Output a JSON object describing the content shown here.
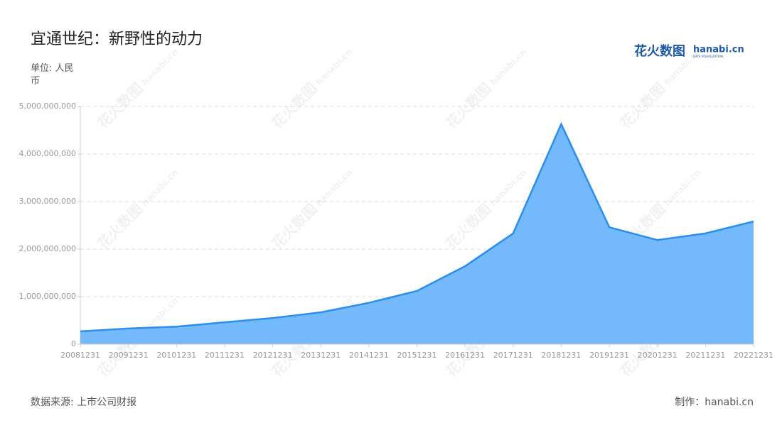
{
  "chart_data": {
    "type": "area",
    "title": "宜通世纪：新野性的动力",
    "unit": "单位: 人民币",
    "source": "数据来源: 上市公司财报",
    "credit": "制作：hanabi.cn",
    "logo": {
      "cn": "花火数图",
      "en": "hanabi.cn",
      "sub": "DATA VISUALIZATION"
    },
    "categories": [
      "20081231",
      "20091231",
      "20101231",
      "20111231",
      "20121231",
      "20131231",
      "20141231",
      "20151231",
      "20161231",
      "20171231",
      "20181231",
      "20191231",
      "20201231",
      "20211231",
      "20221231"
    ],
    "values": [
      270000000,
      330000000,
      370000000,
      460000000,
      550000000,
      670000000,
      870000000,
      1120000000,
      1640000000,
      2330000000,
      4630000000,
      2460000000,
      2190000000,
      2330000000,
      2580000000
    ],
    "color": "#2a8ef0",
    "fill": "#74b9fb",
    "ylim": [
      0,
      5000000000
    ],
    "yticks": [
      0,
      {
        "value": 1000000000,
        "label": "1,000,000,000"
      },
      {
        "value": 2000000000,
        "label": "2,000,000,000"
      },
      {
        "value": 3000000000,
        "label": "3,000,000,000"
      },
      {
        "value": 4000000000,
        "label": "4,000,000,000"
      },
      {
        "value": 5000000000,
        "label": "5,000,000,000"
      }
    ],
    "grid": true
  }
}
